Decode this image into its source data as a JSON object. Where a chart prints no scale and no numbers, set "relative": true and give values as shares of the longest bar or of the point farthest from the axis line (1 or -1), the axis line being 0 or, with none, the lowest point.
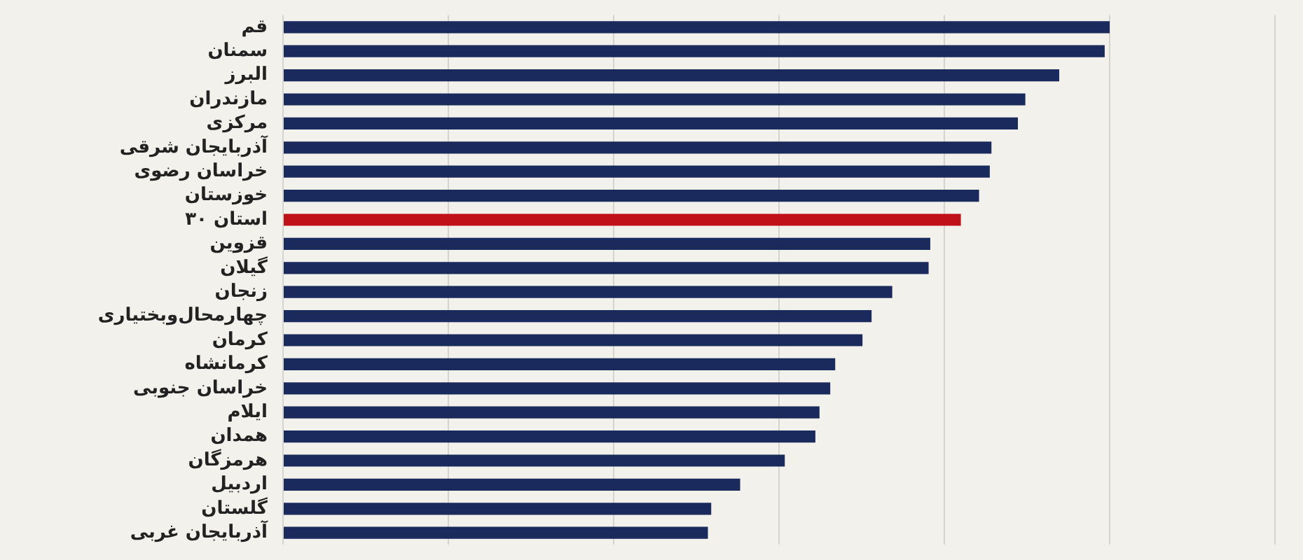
{
  "chart_data": {
    "type": "bar",
    "orientation": "horizontal",
    "relative": true,
    "grid": "x",
    "legend": false,
    "categories": [
      "قم",
      "سمنان",
      "البرز",
      "مازندران",
      "مرکزی",
      "آذربایجان شرقی",
      "خراسان رضوی",
      "خوزستان",
      "۳۰ استان",
      "قزوین",
      "گیلان",
      "زنجان",
      "چهارمحال‌وبختیاری",
      "کرمان",
      "کرمانشاه",
      "خراسان جنوبی",
      "ایلام",
      "همدان",
      "هرمزگان",
      "اردبیل",
      "گلستان",
      "آذربایجان غربی"
    ],
    "values": [
      1,
      0.994,
      0.939,
      0.898,
      0.889,
      0.857,
      0.855,
      0.842,
      0.82,
      0.783,
      0.781,
      0.737,
      0.712,
      0.701,
      0.668,
      0.662,
      0.649,
      0.644,
      0.607,
      0.553,
      0.518,
      0.514
    ],
    "colors": [
      "#1b2a5c",
      "#1b2a5c",
      "#1b2a5c",
      "#1b2a5c",
      "#1b2a5c",
      "#1b2a5c",
      "#1b2a5c",
      "#1b2a5c",
      "#c01018",
      "#1b2a5c",
      "#1b2a5c",
      "#1b2a5c",
      "#1b2a5c",
      "#1b2a5c",
      "#1b2a5c",
      "#1b2a5c",
      "#1b2a5c",
      "#1b2a5c",
      "#1b2a5c",
      "#1b2a5c",
      "#1b2a5c",
      "#1b2a5c"
    ]
  }
}
